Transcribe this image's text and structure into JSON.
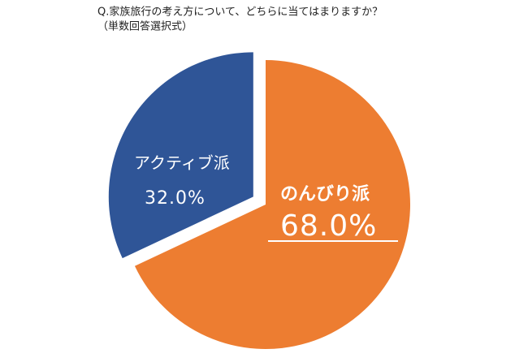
{
  "chart_data": {
    "type": "pie",
    "title": "Q.家族旅行の考え方について、どちらに当てはまりますか？",
    "subtitle": "（単数回答選択式）",
    "categories": [
      "のんびり派",
      "アクティブ派"
    ],
    "values": [
      68.0,
      32.0
    ],
    "value_labels": [
      "68.0%",
      "32.0%"
    ],
    "colors": [
      "#ed7d31",
      "#2f5597"
    ],
    "exploded": [
      false,
      true
    ]
  }
}
